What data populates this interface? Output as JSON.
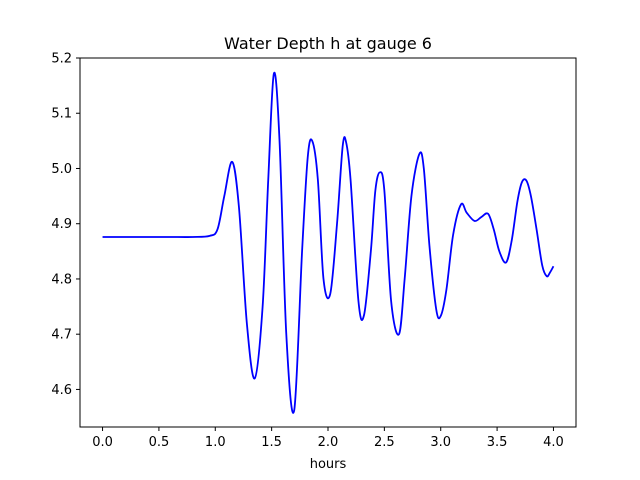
{
  "chart_data": {
    "type": "line",
    "title": "Water Depth h at gauge 6",
    "xlabel": "hours",
    "ylabel": "",
    "xlim": [
      -0.2,
      4.2
    ],
    "ylim": [
      4.532,
      5.2
    ],
    "xticks": [
      0.0,
      0.5,
      1.0,
      1.5,
      2.0,
      2.5,
      3.0,
      3.5,
      4.0
    ],
    "xtick_labels": [
      "0.0",
      "0.5",
      "1.0",
      "1.5",
      "2.0",
      "2.5",
      "3.0",
      "3.5",
      "4.0"
    ],
    "yticks": [
      4.6,
      4.7,
      4.8,
      4.9,
      5.0,
      5.1,
      5.2
    ],
    "ytick_labels": [
      "4.6",
      "4.7",
      "4.8",
      "4.9",
      "5.0",
      "5.1",
      "5.2"
    ],
    "grid": false,
    "series": [
      {
        "color": "#0000ff",
        "x": [
          0.0,
          0.2,
          0.4,
          0.6,
          0.8,
          0.95,
          1.02,
          1.08,
          1.15,
          1.21,
          1.28,
          1.35,
          1.42,
          1.47,
          1.52,
          1.57,
          1.63,
          1.7,
          1.77,
          1.82,
          1.86,
          1.91,
          1.96,
          2.02,
          2.08,
          2.13,
          2.16,
          2.2,
          2.27,
          2.32,
          2.38,
          2.42,
          2.46,
          2.5,
          2.56,
          2.63,
          2.68,
          2.74,
          2.81,
          2.85,
          2.9,
          2.96,
          3.0,
          3.05,
          3.11,
          3.18,
          3.23,
          3.3,
          3.36,
          3.42,
          3.47,
          3.52,
          3.58,
          3.63,
          3.68,
          3.72,
          3.76,
          3.8,
          3.85,
          3.9,
          3.94,
          3.97,
          4.0
        ],
        "y": [
          4.876,
          4.876,
          4.876,
          4.876,
          4.876,
          4.878,
          4.89,
          4.95,
          5.012,
          4.93,
          4.72,
          4.62,
          4.75,
          4.98,
          5.172,
          5.05,
          4.7,
          4.562,
          4.85,
          5.02,
          5.05,
          4.98,
          4.8,
          4.773,
          4.9,
          5.04,
          5.048,
          4.98,
          4.76,
          4.735,
          4.85,
          4.96,
          4.993,
          4.96,
          4.76,
          4.7,
          4.8,
          4.95,
          5.026,
          5.0,
          4.86,
          4.745,
          4.733,
          4.78,
          4.88,
          4.935,
          4.92,
          4.905,
          4.912,
          4.918,
          4.89,
          4.85,
          4.83,
          4.87,
          4.94,
          4.975,
          4.978,
          4.95,
          4.89,
          4.825,
          4.805,
          4.812,
          4.823
        ]
      }
    ]
  }
}
